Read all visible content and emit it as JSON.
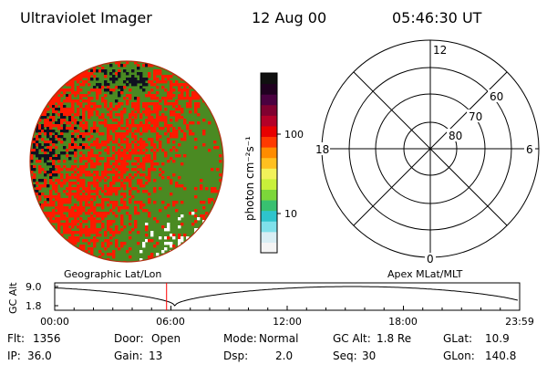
{
  "header": {
    "instrument": "Ultraviolet Imager",
    "date": "12 Aug 00",
    "time": "05:46:30 UT"
  },
  "colorbar": {
    "unit_label": "photon cm⁻²s⁻¹",
    "ticks": [
      {
        "value": 100,
        "label": "100"
      },
      {
        "value": 10,
        "label": "10"
      }
    ],
    "colors": [
      "#f4f4f4",
      "#d8eef4",
      "#7fe0ea",
      "#2ec4cc",
      "#38c070",
      "#7cd63a",
      "#c8f03a",
      "#f2f25a",
      "#ffc020",
      "#ff8c00",
      "#ff3a00",
      "#e80000",
      "#b40028",
      "#800030",
      "#4a0040",
      "#200020",
      "#101010"
    ]
  },
  "polar": {
    "mlt_labels": {
      "top": "12",
      "right": "6",
      "bottom": "0",
      "left": "18"
    },
    "lat_labels": [
      "60",
      "70",
      "80"
    ]
  },
  "timeline": {
    "left_title": "Geographic Lat/Lon",
    "right_title": "Apex MLat/MLT",
    "y_axis_label": "GC Alt",
    "y_ticks": [
      "9.0",
      "1.8"
    ],
    "x_ticks": [
      "00:00",
      "06:00",
      "12:00",
      "18:00",
      "23:59"
    ],
    "marker_time_hours": 5.775,
    "marker_color": "#ff0000"
  },
  "info": {
    "row1": [
      {
        "key": "Flt:",
        "value": "1356"
      },
      {
        "key": "Door:",
        "value": "Open"
      },
      {
        "key": "Mode:",
        "value": "Normal"
      },
      {
        "key": "GC Alt:",
        "value": "1.8 Re"
      },
      {
        "key": "GLat:",
        "value": "10.9"
      }
    ],
    "row2": [
      {
        "key": "IP:",
        "value": "36.0"
      },
      {
        "key": "Gain:",
        "value": "13"
      },
      {
        "key": "Dsp:",
        "value": "2.0"
      },
      {
        "key": "Seq:",
        "value": "30"
      },
      {
        "key": "GLon:",
        "value": "140.8"
      }
    ]
  },
  "image_colors": {
    "green": "#4a8a22",
    "red": "#ff1a00",
    "dark": "#101020",
    "white": "#ffffff",
    "rim": "#b03010"
  }
}
